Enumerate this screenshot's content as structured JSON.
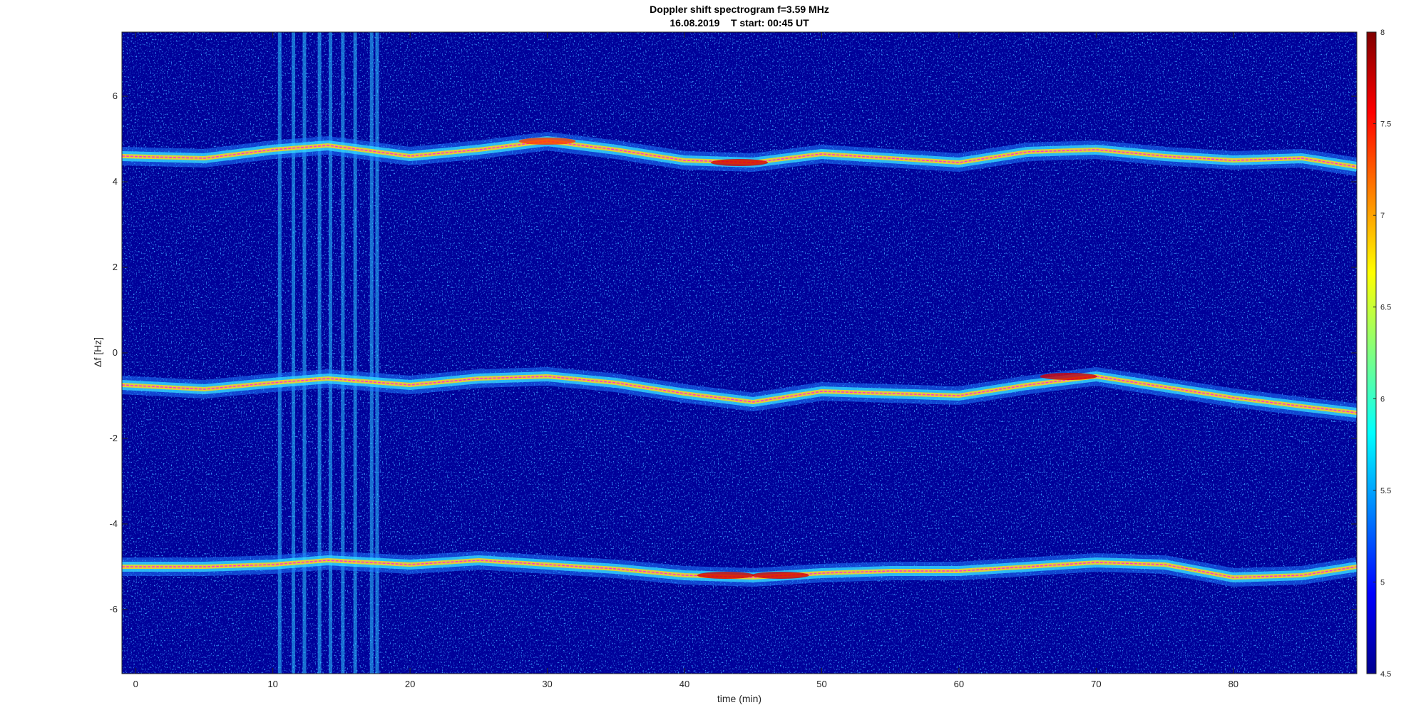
{
  "chart_data": {
    "type": "heatmap",
    "title": "Doppler shift spectrogram f=3.59 MHz",
    "subtitle": "16.08.2019    T start: 00:45 UT",
    "xlabel": "time (min)",
    "ylabel": "Δf [Hz]",
    "xlim": [
      -1,
      89
    ],
    "ylim": [
      -7.5,
      7.5
    ],
    "x_ticks": [
      0,
      10,
      20,
      30,
      40,
      50,
      60,
      70,
      80
    ],
    "y_ticks": [
      -6,
      -4,
      -2,
      0,
      2,
      4,
      6
    ],
    "colorbar": {
      "colormap": "jet",
      "range": [
        4.5,
        8
      ],
      "ticks": [
        4.5,
        5,
        5.5,
        6,
        6.5,
        7,
        7.5,
        8
      ]
    },
    "interference_bands_min": [
      10.5,
      11.5,
      12.3,
      13.4,
      14.2,
      15.1,
      16.0,
      17.2,
      17.6
    ],
    "series": [
      {
        "x": [
          -1,
          5,
          10,
          14,
          20,
          25,
          30,
          35,
          40,
          45,
          50,
          55,
          60,
          65,
          70,
          75,
          80,
          85,
          89
        ],
        "y": [
          4.6,
          4.55,
          4.75,
          4.85,
          4.6,
          4.75,
          4.95,
          4.75,
          4.5,
          4.45,
          4.65,
          4.55,
          4.45,
          4.7,
          4.75,
          4.6,
          4.5,
          4.55,
          4.35
        ]
      },
      {
        "x": [
          -1,
          5,
          10,
          14,
          20,
          25,
          30,
          35,
          40,
          45,
          50,
          55,
          60,
          65,
          70,
          75,
          80,
          85,
          89
        ],
        "y": [
          -0.75,
          -0.85,
          -0.7,
          -0.6,
          -0.75,
          -0.6,
          -0.55,
          -0.7,
          -0.95,
          -1.15,
          -0.9,
          -0.95,
          -1.0,
          -0.75,
          -0.55,
          -0.8,
          -1.05,
          -1.25,
          -1.4
        ]
      },
      {
        "x": [
          -1,
          5,
          10,
          14,
          20,
          25,
          30,
          35,
          40,
          45,
          50,
          55,
          60,
          65,
          70,
          75,
          80,
          85,
          89
        ],
        "y": [
          -5.0,
          -5.0,
          -4.95,
          -4.85,
          -4.95,
          -4.85,
          -4.95,
          -5.05,
          -5.2,
          -5.25,
          -5.15,
          -5.1,
          -5.1,
          -5.0,
          -4.9,
          -4.95,
          -5.25,
          -5.2,
          -5.0
        ]
      }
    ],
    "intensity_notes": {
      "line_intensity_by_minute": [
        {
          "x": 43,
          "y": -5.2,
          "value": 7.8
        },
        {
          "x": 47,
          "y": -5.2,
          "value": 7.9
        },
        {
          "x": 68,
          "y": -0.55,
          "value": 7.6
        },
        {
          "x": 44,
          "y": 4.45,
          "value": 7.5
        },
        {
          "x": 30,
          "y": 4.95,
          "value": 7.0
        }
      ]
    }
  }
}
